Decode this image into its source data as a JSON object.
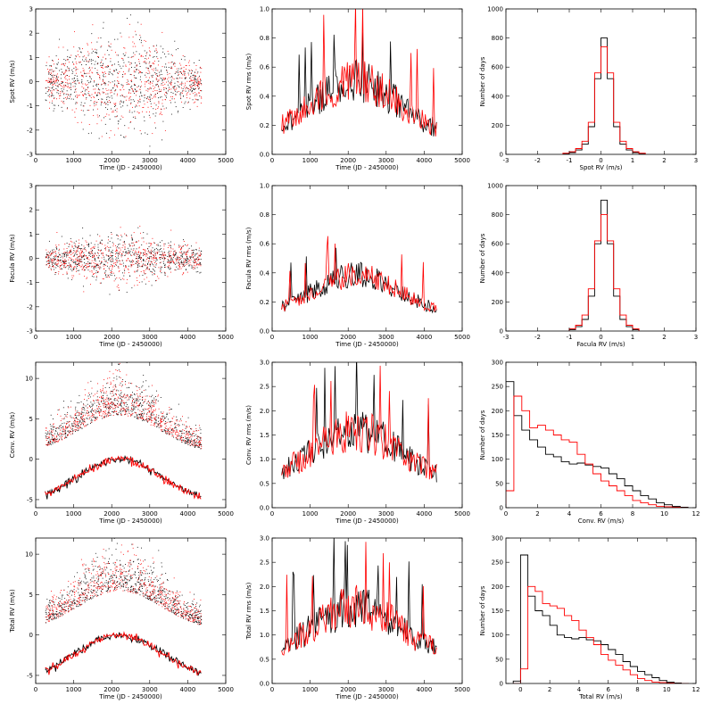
{
  "colors": {
    "series1": "#000000",
    "series2": "#ff0000"
  },
  "chart_data": [
    {
      "id": "p00",
      "type": "scatter",
      "ylabel": "Spot RV (m/s)",
      "xlabel": "Time (JD - 2450000)",
      "xlim": [
        0,
        5000
      ],
      "ylim": [
        -3,
        3
      ],
      "xticks": [
        0,
        1000,
        2000,
        3000,
        4000,
        5000
      ],
      "yticks": [
        -3,
        -2,
        -1,
        0,
        1,
        2,
        3
      ],
      "gen": {
        "kind": "scatter",
        "env": "cycle",
        "base": 0,
        "amp": 0.9,
        "seed": 11
      }
    },
    {
      "id": "p01",
      "type": "line",
      "ylabel": "Spot RV rms (m/s)",
      "xlabel": "Time (JD - 2450000)",
      "xlim": [
        0,
        5000
      ],
      "ylim": [
        0,
        1.0
      ],
      "xticks": [
        0,
        1000,
        2000,
        3000,
        4000,
        5000
      ],
      "yticks": [
        0.0,
        0.2,
        0.4,
        0.6,
        0.8,
        1.0
      ],
      "gen": {
        "kind": "rms",
        "base": 0.1,
        "peak": 0.35,
        "noise": 0.2,
        "seed": 21
      }
    },
    {
      "id": "p02",
      "type": "histogram",
      "ylabel": "Number of days",
      "xlabel": "Spot RV (m/s)",
      "xlim": [
        -3,
        3
      ],
      "ylim": [
        0,
        1000
      ],
      "xticks": [
        -3,
        -2,
        -1,
        0,
        1,
        2,
        3
      ],
      "yticks": [
        0,
        200,
        400,
        600,
        800,
        1000
      ],
      "series": [
        {
          "name": "black",
          "bins": [
            -1.2,
            -1.0,
            -0.8,
            -0.6,
            -0.4,
            -0.2,
            0.0,
            0.2,
            0.4,
            0.6,
            0.8,
            1.0,
            1.2
          ],
          "counts": [
            5,
            12,
            30,
            70,
            190,
            520,
            800,
            520,
            190,
            70,
            30,
            12,
            5
          ]
        },
        {
          "name": "red",
          "bins": [
            -1.2,
            -1.0,
            -0.8,
            -0.6,
            -0.4,
            -0.2,
            0.0,
            0.2,
            0.4,
            0.6,
            0.8,
            1.0,
            1.2
          ],
          "counts": [
            8,
            18,
            40,
            90,
            220,
            560,
            740,
            560,
            220,
            90,
            40,
            18,
            8
          ]
        }
      ]
    },
    {
      "id": "p10",
      "type": "scatter",
      "ylabel": "Facula RV (m/s)",
      "xlabel": "Time (JD - 2450000)",
      "xlim": [
        0,
        5000
      ],
      "ylim": [
        -3,
        3
      ],
      "xticks": [
        0,
        1000,
        2000,
        3000,
        4000,
        5000
      ],
      "yticks": [
        -3,
        -2,
        -1,
        0,
        1,
        2,
        3
      ],
      "gen": {
        "kind": "scatter",
        "env": "cycle",
        "base": 0,
        "amp": 0.45,
        "seed": 31
      }
    },
    {
      "id": "p11",
      "type": "line",
      "ylabel": "Facula RV rms (m/s)",
      "xlabel": "Time (JD - 2450000)",
      "xlim": [
        0,
        5000
      ],
      "ylim": [
        0,
        1.0
      ],
      "xticks": [
        0,
        1000,
        2000,
        3000,
        4000,
        5000
      ],
      "yticks": [
        0.0,
        0.2,
        0.4,
        0.6,
        0.8,
        1.0
      ],
      "gen": {
        "kind": "rms",
        "base": 0.1,
        "peak": 0.25,
        "noise": 0.12,
        "seed": 41
      }
    },
    {
      "id": "p12",
      "type": "histogram",
      "ylabel": "Number of days",
      "xlabel": "Facula RV (m/s)",
      "xlim": [
        -3,
        3
      ],
      "ylim": [
        0,
        1000
      ],
      "xticks": [
        -3,
        -2,
        -1,
        0,
        1,
        2,
        3
      ],
      "yticks": [
        0,
        200,
        400,
        600,
        800,
        1000
      ],
      "series": [
        {
          "name": "black",
          "bins": [
            -1.0,
            -0.8,
            -0.6,
            -0.4,
            -0.2,
            0.0,
            0.2,
            0.4,
            0.6,
            0.8,
            1.0
          ],
          "counts": [
            10,
            30,
            80,
            240,
            600,
            900,
            600,
            240,
            80,
            30,
            10
          ]
        },
        {
          "name": "red",
          "bins": [
            -1.0,
            -0.8,
            -0.6,
            -0.4,
            -0.2,
            0.0,
            0.2,
            0.4,
            0.6,
            0.8,
            1.0
          ],
          "counts": [
            15,
            40,
            110,
            290,
            620,
            800,
            620,
            290,
            110,
            40,
            15
          ]
        }
      ]
    },
    {
      "id": "p20",
      "type": "scatter",
      "ylabel": "Conv. RV (m/s)",
      "xlabel": "Time (JD - 2450000)",
      "xlim": [
        0,
        5000
      ],
      "ylim": [
        -6,
        12
      ],
      "xticks": [
        0,
        1000,
        2000,
        3000,
        4000,
        5000
      ],
      "yticks": [
        -5,
        0,
        5,
        10
      ],
      "gen": {
        "kind": "scatter_plus_line",
        "base": 0.5,
        "peak": 5,
        "amp": 1.5,
        "linebase": -5.5,
        "linepeak": 5.5,
        "seed": 51
      }
    },
    {
      "id": "p21",
      "type": "line",
      "ylabel": "Conv. RV rms (m/s)",
      "xlabel": "Time (JD - 2450000)",
      "xlim": [
        0,
        5000
      ],
      "ylim": [
        0,
        3.0
      ],
      "xticks": [
        0,
        1000,
        2000,
        3000,
        4000,
        5000
      ],
      "yticks": [
        0.0,
        0.5,
        1.0,
        1.5,
        2.0,
        2.5,
        3.0
      ],
      "gen": {
        "kind": "rms",
        "base": 0.5,
        "peak": 0.9,
        "noise": 0.6,
        "seed": 61
      }
    },
    {
      "id": "p22",
      "type": "histogram",
      "ylabel": "Number of days",
      "xlabel": "Conv. RV (m/s)",
      "xlim": [
        0,
        12
      ],
      "ylim": [
        0,
        300
      ],
      "xticks": [
        0,
        2,
        4,
        6,
        8,
        10,
        12
      ],
      "yticks": [
        0,
        50,
        100,
        150,
        200,
        250,
        300
      ],
      "series": [
        {
          "name": "black",
          "bins": [
            0,
            0.5,
            1,
            1.5,
            2,
            2.5,
            3,
            3.5,
            4,
            4.5,
            5,
            5.5,
            6,
            6.5,
            7,
            7.5,
            8,
            8.5,
            9,
            9.5,
            10,
            10.5,
            11
          ],
          "counts": [
            260,
            190,
            160,
            140,
            125,
            110,
            105,
            95,
            90,
            92,
            88,
            85,
            82,
            70,
            60,
            45,
            35,
            25,
            18,
            10,
            6,
            3,
            1
          ]
        },
        {
          "name": "red",
          "bins": [
            0,
            0.5,
            1,
            1.5,
            2,
            2.5,
            3,
            3.5,
            4,
            4.5,
            5,
            5.5,
            6,
            6.5,
            7,
            7.5,
            8,
            8.5,
            9,
            9.5,
            10,
            10.5,
            11
          ],
          "counts": [
            35,
            230,
            200,
            165,
            170,
            160,
            150,
            140,
            135,
            110,
            90,
            70,
            55,
            45,
            35,
            25,
            15,
            10,
            6,
            3,
            2,
            1,
            0
          ]
        }
      ]
    },
    {
      "id": "p30",
      "type": "scatter",
      "ylabel": "Total RV (m/s)",
      "xlabel": "Time (JD - 2450000)",
      "xlim": [
        0,
        5000
      ],
      "ylim": [
        -6,
        12
      ],
      "xticks": [
        0,
        1000,
        2000,
        3000,
        4000,
        5000
      ],
      "yticks": [
        -5,
        0,
        5,
        10
      ],
      "gen": {
        "kind": "scatter_plus_line",
        "base": 0.5,
        "peak": 5,
        "amp": 1.6,
        "linebase": -5.5,
        "linepeak": 5.5,
        "seed": 71
      }
    },
    {
      "id": "p31",
      "type": "line",
      "ylabel": "Total RV rms (m/s)",
      "xlabel": "Time (JD - 2450000)",
      "xlim": [
        0,
        5000
      ],
      "ylim": [
        0,
        3.0
      ],
      "xticks": [
        0,
        1000,
        2000,
        3000,
        4000,
        5000
      ],
      "yticks": [
        0.0,
        0.5,
        1.0,
        1.5,
        2.0,
        2.5,
        3.0
      ],
      "gen": {
        "kind": "rms",
        "base": 0.5,
        "peak": 0.9,
        "noise": 0.6,
        "seed": 81
      }
    },
    {
      "id": "p32",
      "type": "histogram",
      "ylabel": "Number of days",
      "xlabel": "Total RV (m/s)",
      "xlim": [
        -1,
        12
      ],
      "ylim": [
        0,
        300
      ],
      "xticks": [
        0,
        2,
        4,
        6,
        8,
        10,
        12
      ],
      "yticks": [
        0,
        50,
        100,
        150,
        200,
        250,
        300
      ],
      "series": [
        {
          "name": "black",
          "bins": [
            -0.5,
            0,
            0.5,
            1,
            1.5,
            2,
            2.5,
            3,
            3.5,
            4,
            4.5,
            5,
            5.5,
            6,
            6.5,
            7,
            7.5,
            8,
            8.5,
            9,
            9.5,
            10,
            10.5,
            11
          ],
          "counts": [
            5,
            265,
            180,
            150,
            140,
            120,
            100,
            95,
            92,
            95,
            90,
            88,
            80,
            70,
            60,
            45,
            35,
            25,
            18,
            12,
            6,
            3,
            1,
            0
          ]
        },
        {
          "name": "red",
          "bins": [
            -0.5,
            0,
            0.5,
            1,
            1.5,
            2,
            2.5,
            3,
            3.5,
            4,
            4.5,
            5,
            5.5,
            6,
            6.5,
            7,
            7.5,
            8,
            8.5,
            9,
            9.5,
            10,
            10.5,
            11
          ],
          "counts": [
            0,
            30,
            200,
            190,
            165,
            160,
            155,
            140,
            130,
            110,
            95,
            80,
            60,
            48,
            38,
            28,
            18,
            10,
            6,
            3,
            2,
            1,
            0,
            0
          ]
        }
      ]
    }
  ]
}
